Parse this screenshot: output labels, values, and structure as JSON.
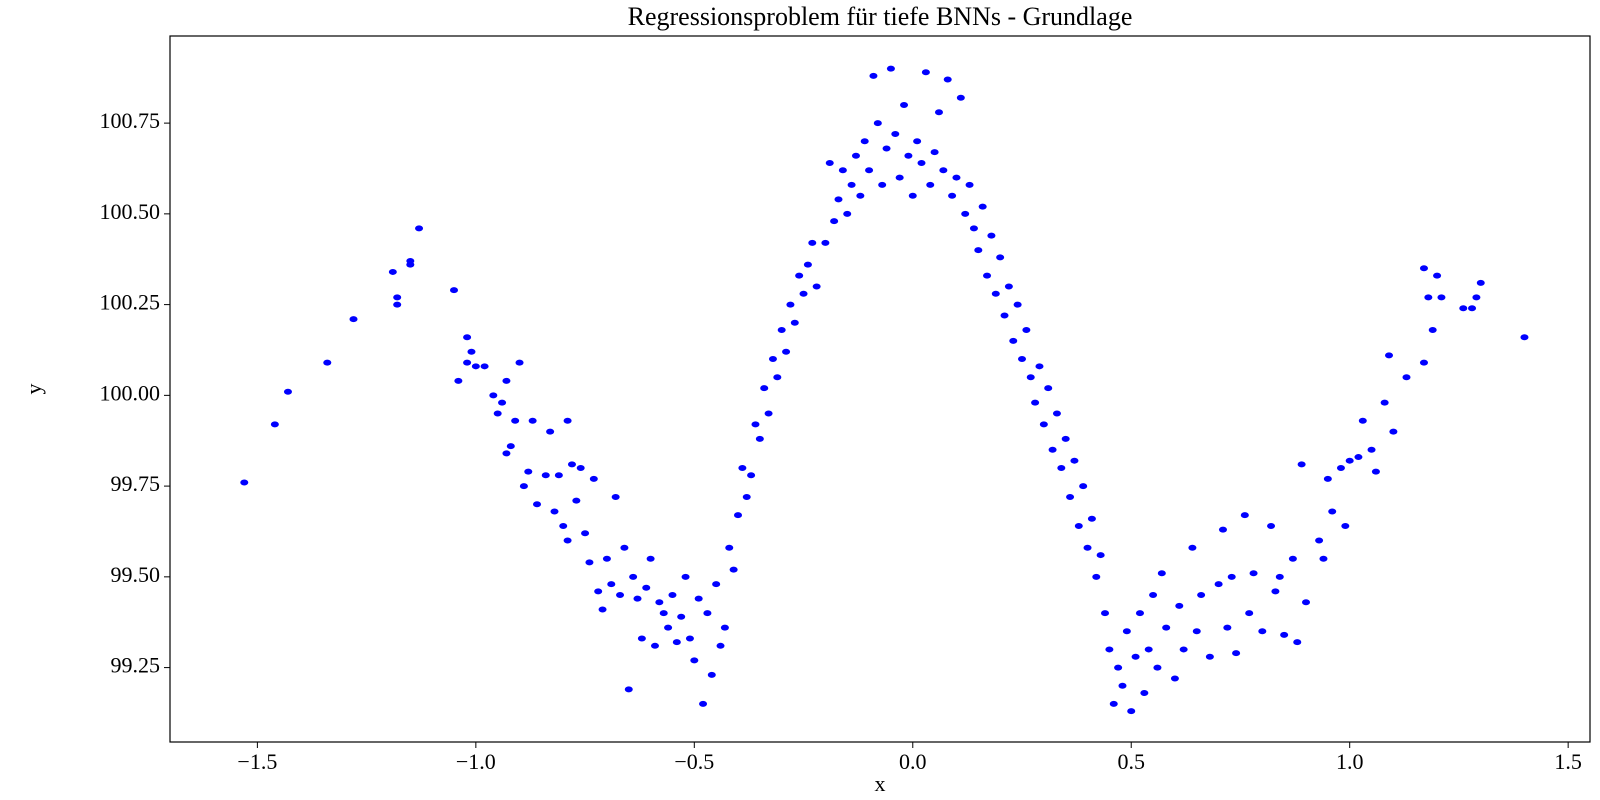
{
  "chart_data": {
    "type": "scatter",
    "title": "Regressionsproblem für tiefe BNNs - Grundlage",
    "xlabel": "x",
    "ylabel": "y",
    "color": "#0000ff",
    "x": [
      -1.53,
      -1.46,
      -1.43,
      -1.34,
      -1.28,
      -1.19,
      -1.18,
      -1.18,
      -1.15,
      -1.15,
      -1.13,
      -1.05,
      -1.04,
      -1.02,
      -1.01,
      -1.02,
      -1.0,
      -0.98,
      -0.96,
      -0.95,
      -0.94,
      -0.93,
      -0.93,
      -0.92,
      -0.91,
      -0.9,
      -0.89,
      -0.88,
      -0.87,
      -0.86,
      -0.84,
      -0.83,
      -0.82,
      -0.81,
      -0.8,
      -0.79,
      -0.79,
      -0.78,
      -0.77,
      -0.76,
      -0.75,
      -0.74,
      -0.73,
      -0.72,
      -0.71,
      -0.7,
      -0.69,
      -0.68,
      -0.67,
      -0.66,
      -0.65,
      -0.64,
      -0.63,
      -0.62,
      -0.61,
      -0.6,
      -0.59,
      -0.58,
      -0.57,
      -0.56,
      -0.55,
      -0.54,
      -0.53,
      -0.52,
      -0.51,
      -0.5,
      -0.49,
      -0.48,
      -0.47,
      -0.46,
      -0.45,
      -0.44,
      -0.43,
      -0.42,
      -0.41,
      -0.4,
      -0.39,
      -0.38,
      -0.37,
      -0.36,
      -0.35,
      -0.34,
      -0.33,
      -0.32,
      -0.31,
      -0.3,
      -0.29,
      -0.28,
      -0.27,
      -0.26,
      -0.25,
      -0.24,
      -0.23,
      -0.22,
      -0.2,
      -0.19,
      -0.18,
      -0.17,
      -0.16,
      -0.15,
      -0.14,
      -0.13,
      -0.12,
      -0.11,
      -0.1,
      -0.09,
      -0.08,
      -0.07,
      -0.06,
      -0.05,
      -0.04,
      -0.03,
      -0.02,
      -0.01,
      0.0,
      0.01,
      0.02,
      0.03,
      0.04,
      0.05,
      0.06,
      0.07,
      0.08,
      0.09,
      0.1,
      0.11,
      0.12,
      0.13,
      0.14,
      0.15,
      0.16,
      0.17,
      0.18,
      0.19,
      0.2,
      0.21,
      0.22,
      0.23,
      0.24,
      0.25,
      0.26,
      0.27,
      0.28,
      0.29,
      0.3,
      0.31,
      0.32,
      0.33,
      0.34,
      0.35,
      0.36,
      0.37,
      0.38,
      0.39,
      0.4,
      0.41,
      0.42,
      0.43,
      0.44,
      0.45,
      0.46,
      0.47,
      0.48,
      0.49,
      0.5,
      0.51,
      0.52,
      0.53,
      0.54,
      0.55,
      0.56,
      0.57,
      0.58,
      0.6,
      0.61,
      0.62,
      0.64,
      0.65,
      0.66,
      0.68,
      0.7,
      0.71,
      0.72,
      0.73,
      0.74,
      0.76,
      0.77,
      0.78,
      0.8,
      0.82,
      0.83,
      0.84,
      0.85,
      0.87,
      0.88,
      0.89,
      0.9,
      0.93,
      0.94,
      0.95,
      0.96,
      0.98,
      0.99,
      1.0,
      1.02,
      1.03,
      1.05,
      1.06,
      1.08,
      1.09,
      1.1,
      1.13,
      1.17,
      1.17,
      1.18,
      1.19,
      1.2,
      1.21,
      1.26,
      1.28,
      1.29,
      1.3,
      1.4
    ],
    "values": [
      99.76,
      99.92,
      100.01,
      100.09,
      100.21,
      100.34,
      100.27,
      100.25,
      100.37,
      100.36,
      100.46,
      100.29,
      100.04,
      100.16,
      100.12,
      100.09,
      100.08,
      100.08,
      100.0,
      99.95,
      99.98,
      100.04,
      99.84,
      99.86,
      99.93,
      100.09,
      99.75,
      99.79,
      99.93,
      99.7,
      99.78,
      99.9,
      99.68,
      99.78,
      99.64,
      99.93,
      99.6,
      99.81,
      99.71,
      99.8,
      99.62,
      99.54,
      99.77,
      99.46,
      99.41,
      99.55,
      99.48,
      99.72,
      99.45,
      99.58,
      99.19,
      99.5,
      99.44,
      99.33,
      99.47,
      99.55,
      99.31,
      99.43,
      99.4,
      99.36,
      99.45,
      99.32,
      99.39,
      99.5,
      99.33,
      99.27,
      99.44,
      99.15,
      99.4,
      99.23,
      99.48,
      99.31,
      99.36,
      99.58,
      99.52,
      99.67,
      99.8,
      99.72,
      99.78,
      99.92,
      99.88,
      100.02,
      99.95,
      100.1,
      100.05,
      100.18,
      100.12,
      100.25,
      100.2,
      100.33,
      100.28,
      100.36,
      100.42,
      100.3,
      100.42,
      100.64,
      100.48,
      100.54,
      100.62,
      100.5,
      100.58,
      100.66,
      100.55,
      100.7,
      100.62,
      100.88,
      100.75,
      100.58,
      100.68,
      100.9,
      100.72,
      100.6,
      100.8,
      100.66,
      100.55,
      100.7,
      100.64,
      100.89,
      100.58,
      100.67,
      100.78,
      100.62,
      100.87,
      100.55,
      100.6,
      100.82,
      100.5,
      100.58,
      100.46,
      100.4,
      100.52,
      100.33,
      100.44,
      100.28,
      100.38,
      100.22,
      100.3,
      100.15,
      100.25,
      100.1,
      100.18,
      100.05,
      99.98,
      100.08,
      99.92,
      100.02,
      99.85,
      99.95,
      99.8,
      99.88,
      99.72,
      99.82,
      99.64,
      99.75,
      99.58,
      99.66,
      99.5,
      99.56,
      99.4,
      99.3,
      99.15,
      99.25,
      99.2,
      99.35,
      99.13,
      99.28,
      99.4,
      99.18,
      99.3,
      99.45,
      99.25,
      99.51,
      99.36,
      99.22,
      99.42,
      99.3,
      99.58,
      99.35,
      99.45,
      99.28,
      99.48,
      99.63,
      99.36,
      99.5,
      99.29,
      99.67,
      99.4,
      99.51,
      99.35,
      99.64,
      99.46,
      99.5,
      99.34,
      99.55,
      99.32,
      99.81,
      99.43,
      99.6,
      99.55,
      99.77,
      99.68,
      99.8,
      99.64,
      99.82,
      99.83,
      99.93,
      99.85,
      99.79,
      99.98,
      100.11,
      99.9,
      100.05,
      100.09,
      100.35,
      100.27,
      100.18,
      100.33,
      100.27,
      100.24,
      100.24,
      100.27,
      100.31,
      100.16
    ],
    "xlim": [
      -1.7,
      1.55
    ],
    "ylim": [
      99.045,
      100.99
    ],
    "xticks": [
      {
        "value": -1.5,
        "label": "−1.5"
      },
      {
        "value": -1.0,
        "label": "−1.0"
      },
      {
        "value": -0.5,
        "label": "−0.5"
      },
      {
        "value": 0.0,
        "label": "0.0"
      },
      0.5,
      {
        "value": 1.0,
        "label": "1.0"
      },
      1.5
    ],
    "yticks": [
      99.25,
      {
        "value": 99.5,
        "label": "99.50"
      },
      99.75,
      {
        "value": 100.0,
        "label": "100.00"
      },
      100.25,
      {
        "value": 100.5,
        "label": "100.50"
      },
      100.75
    ]
  }
}
